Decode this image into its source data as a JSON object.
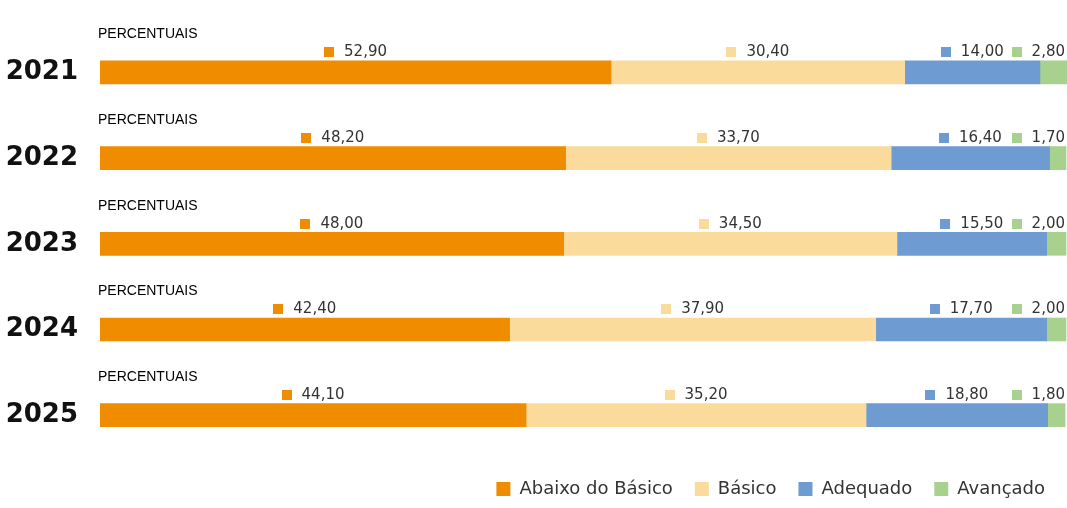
{
  "chart_data": {
    "type": "bar",
    "orientation": "horizontal",
    "stacked": true,
    "categories": [
      "2021",
      "2022",
      "2023",
      "2024",
      "2025"
    ],
    "series": [
      {
        "name": "Abaixo do Básico",
        "color": "#f08c00",
        "values": [
          52.9,
          48.2,
          48.0,
          42.4,
          44.1
        ],
        "value_labels": [
          "52,90",
          "48,20",
          "48,00",
          "42,40",
          "44,10"
        ]
      },
      {
        "name": "Básico",
        "color": "#fadb9c",
        "values": [
          30.4,
          33.7,
          34.5,
          37.9,
          35.2
        ],
        "value_labels": [
          "30,40",
          "33,70",
          "34,50",
          "37,90",
          "35,20"
        ]
      },
      {
        "name": "Adequado",
        "color": "#6e9bd2",
        "values": [
          14.0,
          16.4,
          15.5,
          17.7,
          18.8
        ],
        "value_labels": [
          "14,00",
          "16,40",
          "15,50",
          "17,70",
          "18,80"
        ]
      },
      {
        "name": "Avançado",
        "color": "#a9d18e",
        "values": [
          2.8,
          1.7,
          2.0,
          2.0,
          1.8
        ],
        "value_labels": [
          "2,80",
          "1,70",
          "2,00",
          "2,00",
          "1,80"
        ]
      }
    ],
    "grid": false,
    "tick_labels": "y",
    "legend": "bottom right",
    "annotations": [
      "PERCENTUAIS",
      "PERCENTUAIS",
      "PERCENTUAIS",
      "PERCENTUAIS",
      "PERCENTUAIS"
    ]
  }
}
